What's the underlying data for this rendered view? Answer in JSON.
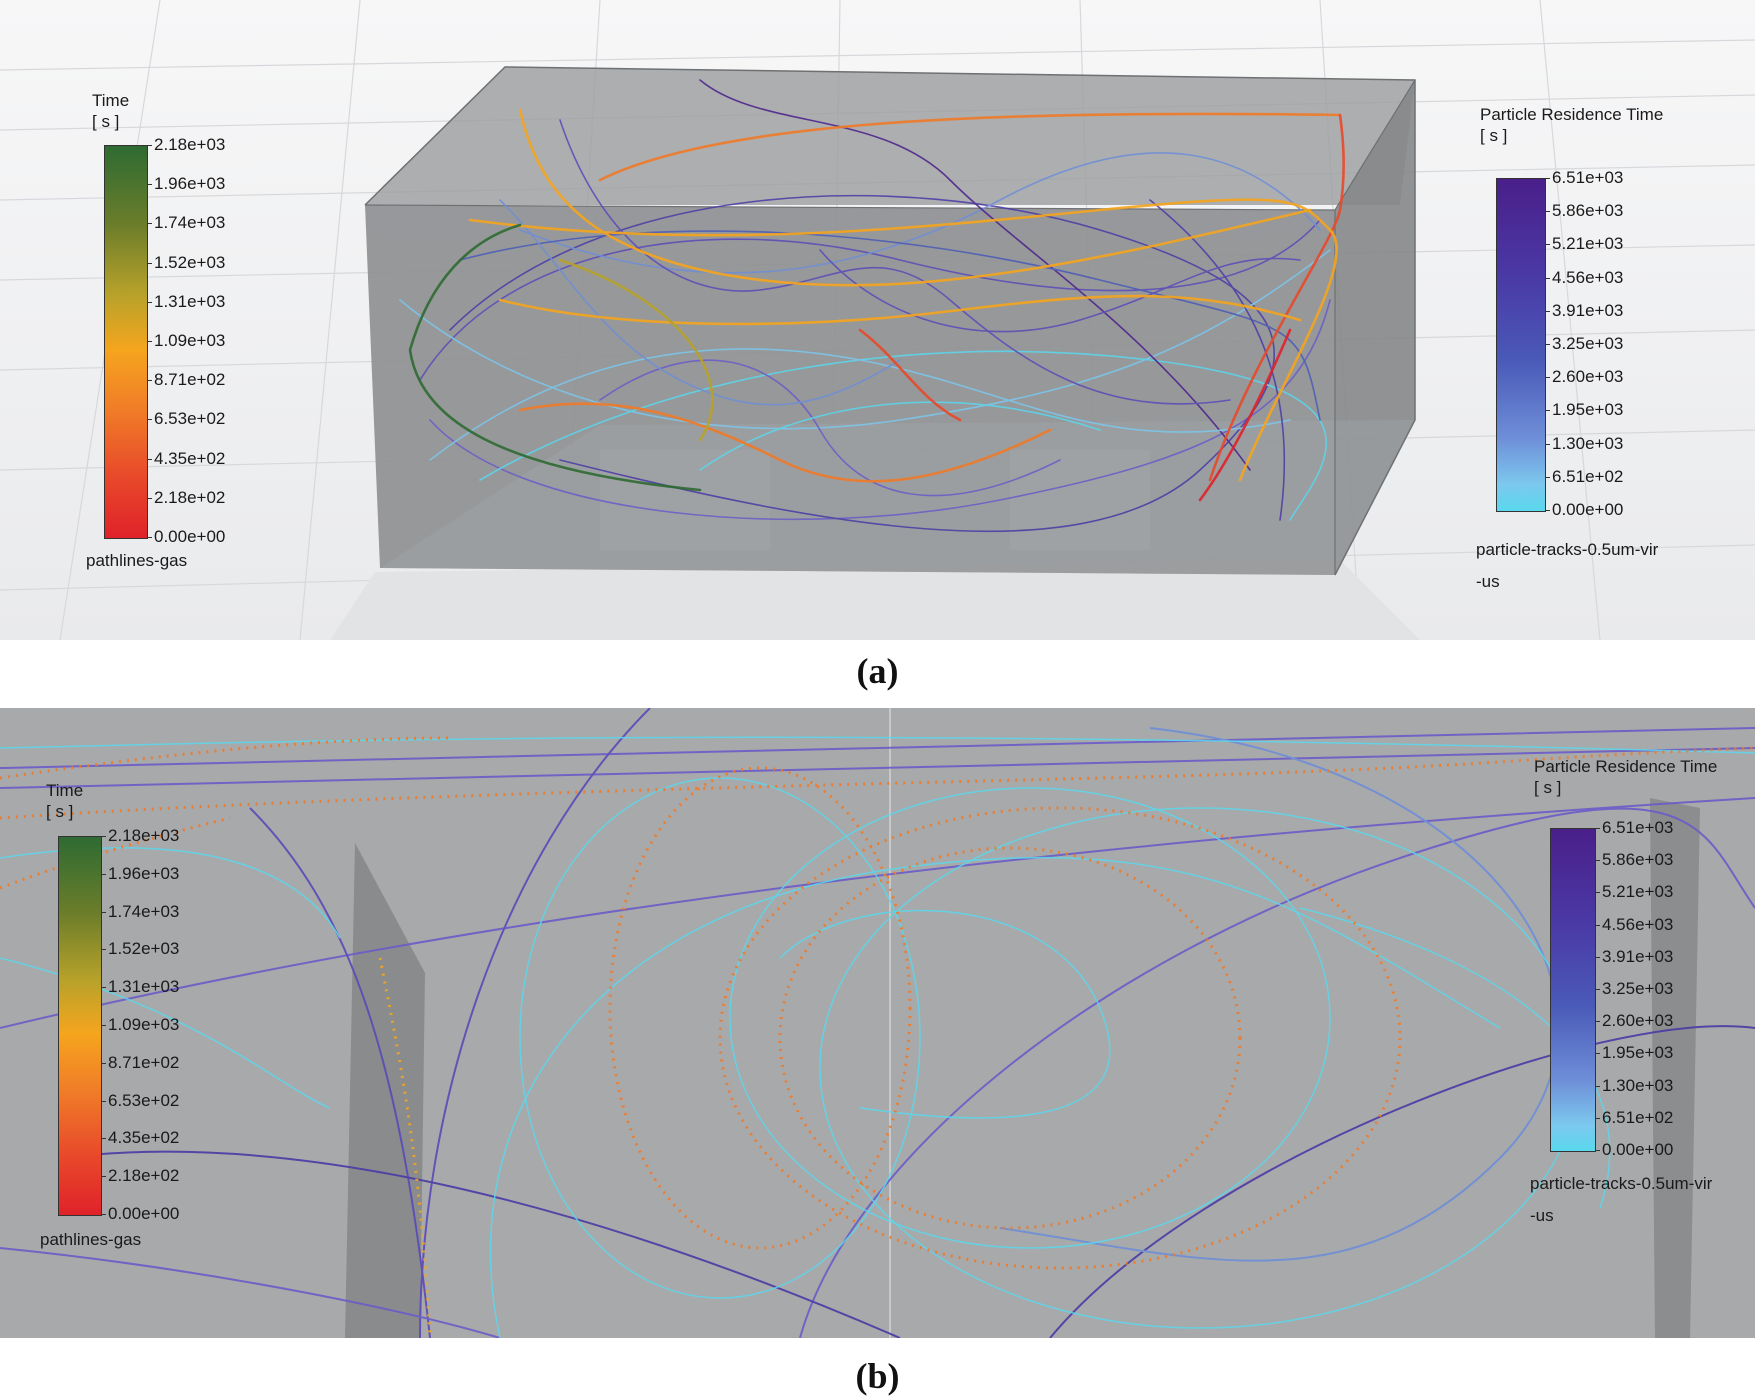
{
  "panel_a": {
    "caption": "(a)",
    "time_legend": {
      "title_line1": "Time",
      "title_line2": "[ s ]",
      "ticks": [
        "2.18e+03",
        "1.96e+03",
        "1.74e+03",
        "1.52e+03",
        "1.31e+03",
        "1.09e+03",
        "8.71e+02",
        "6.53e+02",
        "4.35e+02",
        "2.18e+02",
        "0.00e+00"
      ],
      "name": "pathlines-gas",
      "gradient": [
        "#2e6b32",
        "#6b7d2a",
        "#b8a22a",
        "#f5a51e",
        "#f07a28",
        "#e84a2a",
        "#e0222a"
      ]
    },
    "residence_legend": {
      "title_line1": "Particle Residence Time",
      "title_line2": "[ s ]",
      "ticks": [
        "6.51e+03",
        "5.86e+03",
        "5.21e+03",
        "4.56e+03",
        "3.91e+03",
        "3.25e+03",
        "2.60e+03",
        "1.95e+03",
        "1.30e+03",
        "6.51e+02",
        "0.00e+00"
      ],
      "name_line1": "particle-tracks-0.5um-vir",
      "name_line2": "-us",
      "gradient": [
        "#4a1f8a",
        "#4a3aa6",
        "#4a5ab8",
        "#6e8ed8",
        "#7cc8ee",
        "#5ad8ee"
      ]
    }
  },
  "panel_b": {
    "caption": "(b)",
    "time_legend": {
      "title_line1": "Time",
      "title_line2": "[ s ]",
      "ticks": [
        "2.18e+03",
        "1.96e+03",
        "1.74e+03",
        "1.52e+03",
        "1.31e+03",
        "1.09e+03",
        "8.71e+02",
        "6.53e+02",
        "4.35e+02",
        "2.18e+02",
        "0.00e+00"
      ],
      "name": "pathlines-gas"
    },
    "residence_legend": {
      "title_line1": "Particle Residence Time",
      "title_line2": "[ s ]",
      "ticks": [
        "6.51e+03",
        "5.86e+03",
        "5.21e+03",
        "4.56e+03",
        "3.91e+03",
        "3.25e+03",
        "2.60e+03",
        "1.95e+03",
        "1.30e+03",
        "6.51e+02",
        "0.00e+00"
      ],
      "name_line1": "particle-tracks-0.5um-vir",
      "name_line2": "-us"
    }
  }
}
